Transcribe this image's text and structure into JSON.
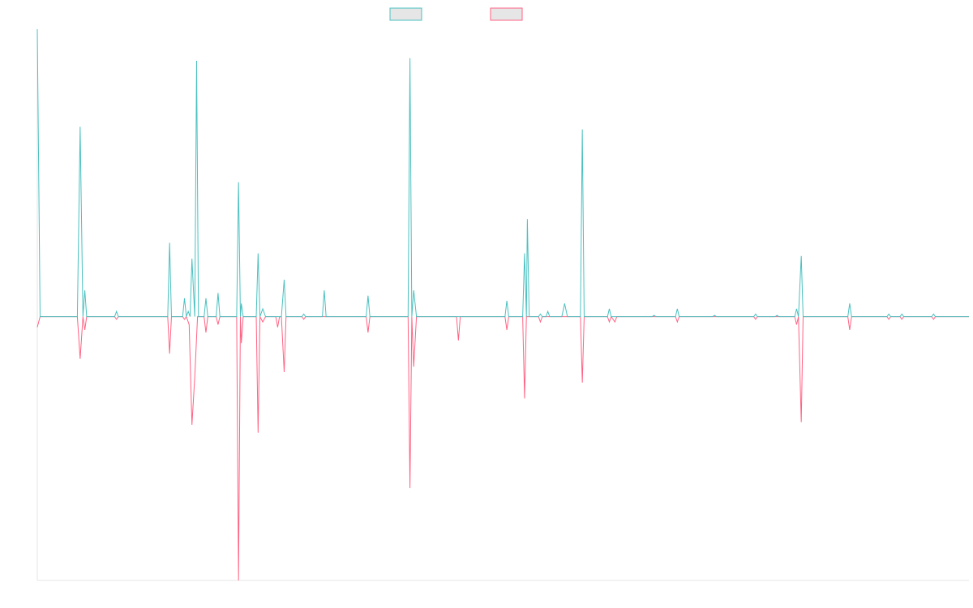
{
  "chart_data": {
    "type": "line",
    "title": "",
    "xlabel": "",
    "ylabel": "",
    "x_range": [
      0,
      100
    ],
    "ylim": [
      -100,
      109
    ],
    "grid": false,
    "legend": "top-center",
    "legend_entries": [
      {
        "name": "",
        "color": "#4bc0c0",
        "fill": "#e6e6e6"
      },
      {
        "name": "",
        "color": "#ff6384",
        "fill": "#e6e6e6"
      }
    ],
    "series": [
      {
        "name": "",
        "color": "#4bc0c0",
        "points": [
          [
            0,
            109
          ],
          [
            0.3,
            0
          ],
          [
            4.3,
            0
          ],
          [
            4.6,
            72
          ],
          [
            4.9,
            0
          ],
          [
            5.1,
            10
          ],
          [
            5.3,
            0
          ],
          [
            8.3,
            0
          ],
          [
            8.5,
            2
          ],
          [
            8.7,
            0
          ],
          [
            14.0,
            0
          ],
          [
            14.2,
            28
          ],
          [
            14.4,
            0
          ],
          [
            15.6,
            0
          ],
          [
            15.8,
            7
          ],
          [
            16.0,
            0
          ],
          [
            16.2,
            2
          ],
          [
            16.4,
            0
          ],
          [
            16.6,
            22
          ],
          [
            16.9,
            0
          ],
          [
            17.1,
            97
          ],
          [
            17.3,
            0
          ],
          [
            17.9,
            0
          ],
          [
            18.1,
            7
          ],
          [
            18.3,
            0
          ],
          [
            19.2,
            0
          ],
          [
            19.4,
            9
          ],
          [
            19.6,
            0
          ],
          [
            21.4,
            0
          ],
          [
            21.6,
            51
          ],
          [
            21.8,
            0
          ],
          [
            21.9,
            5
          ],
          [
            22.1,
            0
          ],
          [
            23.5,
            0
          ],
          [
            23.7,
            24
          ],
          [
            23.9,
            0
          ],
          [
            24.2,
            3
          ],
          [
            24.5,
            0
          ],
          [
            26.2,
            0
          ],
          [
            26.5,
            14
          ],
          [
            26.7,
            0
          ],
          [
            28.4,
            0
          ],
          [
            28.6,
            1
          ],
          [
            28.8,
            0
          ],
          [
            30.6,
            0
          ],
          [
            30.8,
            10
          ],
          [
            31.0,
            0
          ],
          [
            35.3,
            0
          ],
          [
            35.5,
            8
          ],
          [
            35.7,
            0
          ],
          [
            39.8,
            0
          ],
          [
            40.0,
            98
          ],
          [
            40.2,
            0
          ],
          [
            40.4,
            10
          ],
          [
            40.7,
            0
          ],
          [
            50.2,
            0
          ],
          [
            50.4,
            6
          ],
          [
            50.6,
            0
          ],
          [
            52.1,
            0
          ],
          [
            52.3,
            24
          ],
          [
            52.5,
            0
          ],
          [
            52.6,
            37
          ],
          [
            52.8,
            0
          ],
          [
            53.8,
            0
          ],
          [
            54.0,
            1
          ],
          [
            54.2,
            0
          ],
          [
            54.6,
            0
          ],
          [
            54.8,
            2
          ],
          [
            55.0,
            0
          ],
          [
            56.3,
            0
          ],
          [
            56.6,
            5
          ],
          [
            56.9,
            0
          ],
          [
            58.3,
            0
          ],
          [
            58.5,
            71
          ],
          [
            58.7,
            0
          ],
          [
            61.2,
            0
          ],
          [
            61.4,
            3
          ],
          [
            61.6,
            0
          ],
          [
            66.0,
            0
          ],
          [
            66.2,
            0.5
          ],
          [
            66.4,
            0
          ],
          [
            68.5,
            0
          ],
          [
            68.7,
            3
          ],
          [
            68.9,
            0
          ],
          [
            72.5,
            0
          ],
          [
            72.7,
            0.5
          ],
          [
            72.9,
            0
          ],
          [
            76.9,
            0
          ],
          [
            77.1,
            1
          ],
          [
            77.3,
            0
          ],
          [
            79.2,
            0
          ],
          [
            79.4,
            0.5
          ],
          [
            79.6,
            0
          ],
          [
            81.3,
            0
          ],
          [
            81.5,
            3
          ],
          [
            81.7,
            0
          ],
          [
            82.0,
            23
          ],
          [
            82.2,
            0
          ],
          [
            87.0,
            0
          ],
          [
            87.2,
            5
          ],
          [
            87.4,
            0
          ],
          [
            91.2,
            0
          ],
          [
            91.4,
            1
          ],
          [
            91.6,
            0
          ],
          [
            92.6,
            0
          ],
          [
            92.8,
            1
          ],
          [
            93.0,
            0
          ],
          [
            96.0,
            0
          ],
          [
            96.2,
            1
          ],
          [
            96.4,
            0
          ],
          [
            100,
            0
          ]
        ]
      },
      {
        "name": "",
        "color": "#ff6384",
        "points": [
          [
            0,
            -4
          ],
          [
            0.3,
            0
          ],
          [
            4.3,
            0
          ],
          [
            4.6,
            -16
          ],
          [
            4.9,
            0
          ],
          [
            5.1,
            -5
          ],
          [
            5.3,
            0
          ],
          [
            8.3,
            0
          ],
          [
            8.5,
            -1
          ],
          [
            8.7,
            0
          ],
          [
            14.0,
            0
          ],
          [
            14.2,
            -14
          ],
          [
            14.4,
            0
          ],
          [
            15.6,
            0
          ],
          [
            15.8,
            -1
          ],
          [
            16.0,
            0
          ],
          [
            16.3,
            -3
          ],
          [
            16.6,
            -41
          ],
          [
            16.9,
            -23
          ],
          [
            17.2,
            0
          ],
          [
            17.9,
            0
          ],
          [
            18.1,
            -6
          ],
          [
            18.3,
            0
          ],
          [
            19.2,
            0
          ],
          [
            19.4,
            -3
          ],
          [
            19.6,
            0
          ],
          [
            21.4,
            0
          ],
          [
            21.6,
            -100
          ],
          [
            21.8,
            0
          ],
          [
            21.9,
            -10
          ],
          [
            22.1,
            0
          ],
          [
            23.5,
            0
          ],
          [
            23.7,
            -44
          ],
          [
            23.9,
            0
          ],
          [
            24.2,
            -2
          ],
          [
            24.5,
            0
          ],
          [
            25.6,
            0
          ],
          [
            25.8,
            -4
          ],
          [
            26.0,
            0
          ],
          [
            26.2,
            0
          ],
          [
            26.5,
            -21
          ],
          [
            26.7,
            0
          ],
          [
            28.4,
            0
          ],
          [
            28.6,
            -1
          ],
          [
            28.8,
            0
          ],
          [
            35.3,
            0
          ],
          [
            35.5,
            -6
          ],
          [
            35.7,
            0
          ],
          [
            39.8,
            0
          ],
          [
            40.0,
            -65
          ],
          [
            40.2,
            0
          ],
          [
            40.4,
            -19
          ],
          [
            40.7,
            0
          ],
          [
            45.0,
            0
          ],
          [
            45.2,
            -9
          ],
          [
            45.4,
            0
          ],
          [
            50.2,
            0
          ],
          [
            50.4,
            -5
          ],
          [
            50.6,
            0
          ],
          [
            52.1,
            0
          ],
          [
            52.3,
            -31
          ],
          [
            52.5,
            0
          ],
          [
            53.8,
            0
          ],
          [
            54.0,
            -2
          ],
          [
            54.2,
            0
          ],
          [
            58.3,
            0
          ],
          [
            58.5,
            -25
          ],
          [
            58.7,
            0
          ],
          [
            61.2,
            0
          ],
          [
            61.4,
            -2
          ],
          [
            61.6,
            0
          ],
          [
            62.0,
            -2
          ],
          [
            62.2,
            0
          ],
          [
            68.5,
            0
          ],
          [
            68.7,
            -2
          ],
          [
            68.9,
            0
          ],
          [
            76.9,
            0
          ],
          [
            77.1,
            -1
          ],
          [
            77.3,
            0
          ],
          [
            81.3,
            0
          ],
          [
            81.5,
            -3
          ],
          [
            81.7,
            0
          ],
          [
            82.0,
            -40
          ],
          [
            82.2,
            0
          ],
          [
            87.0,
            0
          ],
          [
            87.2,
            -5
          ],
          [
            87.4,
            0
          ],
          [
            91.2,
            0
          ],
          [
            91.4,
            -1
          ],
          [
            91.6,
            0
          ],
          [
            92.6,
            0
          ],
          [
            92.8,
            -1
          ],
          [
            93.0,
            0
          ],
          [
            96.0,
            0
          ],
          [
            96.2,
            -1
          ],
          [
            96.4,
            0
          ],
          [
            100,
            0
          ]
        ]
      }
    ]
  }
}
